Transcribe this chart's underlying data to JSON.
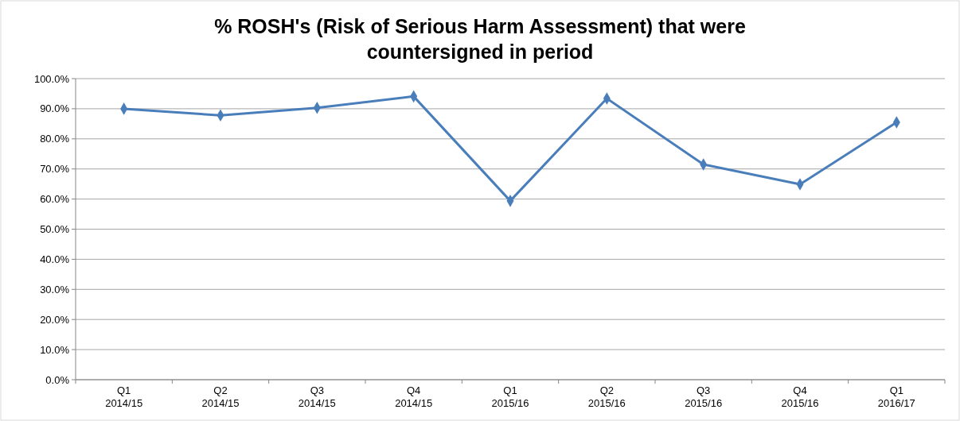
{
  "chart_data": {
    "type": "line",
    "title": "% ROSH's (Risk of Serious Harm Assessment) that were countersigned in period",
    "categories": [
      "Q1\n2014/15",
      "Q2\n2014/15",
      "Q3\n2014/15",
      "Q4\n2014/15",
      "Q1\n2015/16",
      "Q2\n2015/16",
      "Q3\n2015/16",
      "Q4\n2015/16",
      "Q1\n2016/17"
    ],
    "series": [
      {
        "color": "#4a7ebb",
        "values": [
          90.0,
          87.8,
          90.3,
          94.1,
          59.4,
          93.4,
          71.5,
          64.9,
          85.5
        ]
      }
    ],
    "ylim": [
      0,
      100
    ],
    "yticks": [
      {
        "value": 0,
        "label": "0.0%"
      },
      {
        "value": 10,
        "label": "10.0%"
      },
      {
        "value": 20,
        "label": "20.0%"
      },
      {
        "value": 30,
        "label": "30.0%"
      },
      {
        "value": 40,
        "label": "40.0%"
      },
      {
        "value": 50,
        "label": "50.0%"
      },
      {
        "value": 60,
        "label": "60.0%"
      },
      {
        "value": 70,
        "label": "70.0%"
      },
      {
        "value": 80,
        "label": "80.0%"
      },
      {
        "value": 90,
        "label": "90.0%"
      },
      {
        "value": 100,
        "label": "100.0%"
      }
    ],
    "grid": "y",
    "marker": "diamond",
    "line_style": "solid"
  }
}
